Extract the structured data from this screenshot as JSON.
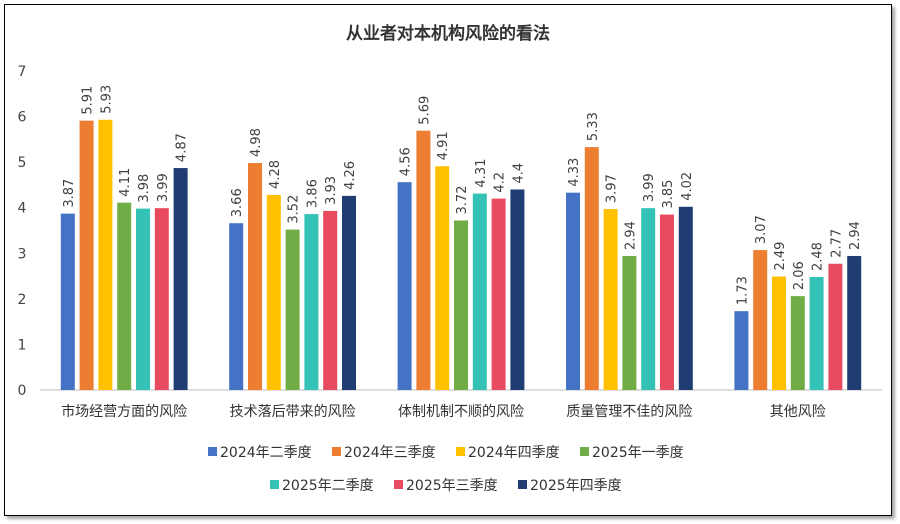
{
  "chart_data": {
    "type": "bar",
    "title": "从业者对本机构风险的看法",
    "xlabel": "",
    "ylabel": "",
    "ylim": [
      0,
      7
    ],
    "yticks": [
      0,
      1,
      2,
      3,
      4,
      5,
      6,
      7
    ],
    "grid": false,
    "legend_position": "bottom",
    "categories": [
      "市场经营方面的风险",
      "技术落后带来的风险",
      "体制机制不顺的风险",
      "质量管理不佳的风险",
      "其他风险"
    ],
    "series": [
      {
        "name": "2024年二季度",
        "color": "#4472C4",
        "values": [
          3.87,
          3.66,
          4.56,
          4.33,
          1.73
        ]
      },
      {
        "name": "2024年三季度",
        "color": "#ED7D31",
        "values": [
          5.91,
          4.98,
          5.69,
          5.33,
          3.07
        ]
      },
      {
        "name": "2024年四季度",
        "color": "#FFC000",
        "values": [
          5.93,
          4.28,
          4.91,
          3.97,
          2.49
        ]
      },
      {
        "name": "2025年一季度",
        "color": "#70AD47",
        "values": [
          4.11,
          3.52,
          3.72,
          2.94,
          2.06
        ]
      },
      {
        "name": "2025年二季度",
        "color": "#33C2B5",
        "values": [
          3.98,
          3.86,
          4.31,
          3.99,
          2.48
        ]
      },
      {
        "name": "2025年三季度",
        "color": "#E84A5F",
        "values": [
          3.99,
          3.93,
          4.2,
          3.85,
          2.77
        ]
      },
      {
        "name": "2025年四季度",
        "color": "#1F3C73",
        "values": [
          4.87,
          4.26,
          4.4,
          4.02,
          2.94
        ]
      }
    ]
  }
}
